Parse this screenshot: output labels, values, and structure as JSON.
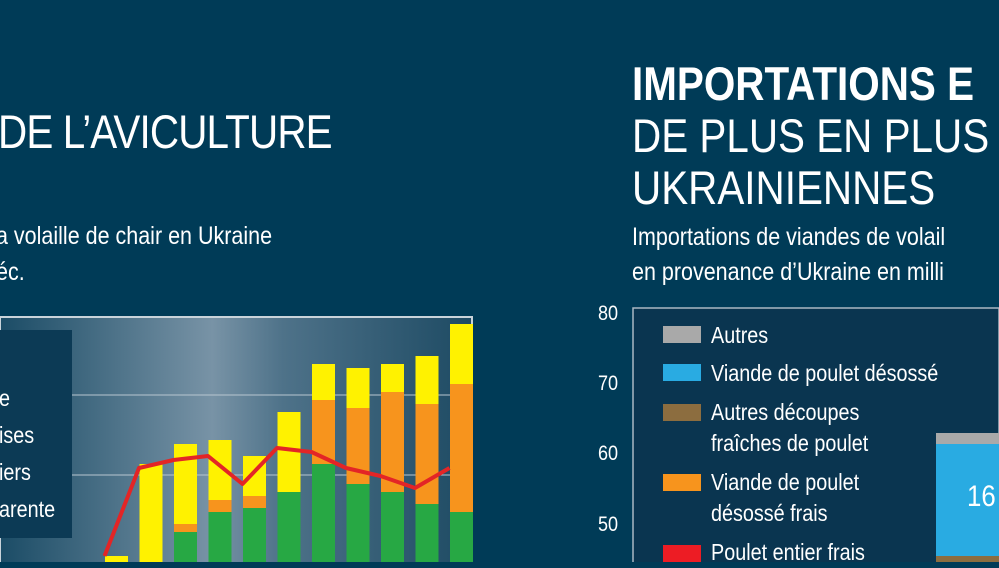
{
  "left": {
    "title": "DE L’AVICULTURE",
    "subtitle_line1": "a volaille de chair en Ukraine",
    "subtitle_line2": "éc.",
    "legend_lines": [
      "e",
      "ises",
      "iers",
      "arente"
    ]
  },
  "right": {
    "title_line1": "IMPORTATIONS E",
    "title_line2": "DE PLUS EN PLUS D",
    "title_line3": "UKRAINIENNES",
    "subtitle_line1": "Importations de viandes de volail",
    "subtitle_line2": "en provenance d’Ukraine en milli",
    "yticks": [
      "80",
      "70",
      "60",
      "50"
    ],
    "legend": [
      {
        "label": "Autres",
        "color": "#a9a9a9"
      },
      {
        "label": "Viande de poulet désossé",
        "color": "#29abe2"
      },
      {
        "label": "Autres découpes\nfraîches de poulet",
        "color": "#8c6d3f"
      },
      {
        "label": "Viande de poulet\ndésossé frais",
        "color": "#f7941d"
      },
      {
        "label": "Poulet entier frais",
        "color": "#ed1c24"
      }
    ],
    "bar_label": "16"
  },
  "chart_data": [
    {
      "type": "bar",
      "title": "",
      "stack_colors": [
        "#27a844",
        "#f7941d",
        "#fff200"
      ],
      "line_color": "#e32526",
      "bars": [
        {
          "green": 0,
          "orange": 0,
          "yellow": 2
        },
        {
          "green": 0,
          "orange": 0.5,
          "yellow": 13
        },
        {
          "green": 5,
          "orange": 1,
          "yellow": 10
        },
        {
          "green": 7.5,
          "orange": 1.5,
          "yellow": 7.5
        },
        {
          "green": 8,
          "orange": 1.5,
          "yellow": 5
        },
        {
          "green": 10,
          "orange": 0,
          "yellow": 10
        },
        {
          "green": 13.5,
          "orange": 8,
          "yellow": 4.5
        },
        {
          "green": 11,
          "orange": 9.5,
          "yellow": 5
        },
        {
          "green": 10,
          "orange": 12.5,
          "yellow": 3.5
        },
        {
          "green": 8.5,
          "orange": 12.5,
          "yellow": 6
        },
        {
          "green": 7.5,
          "orange": 16,
          "yellow": 7.5
        }
      ],
      "line": [
        2,
        13,
        14,
        14.5,
        11,
        15.5,
        15,
        13,
        12,
        10.5,
        13
      ]
    },
    {
      "type": "bar",
      "ylim": [
        45,
        80
      ],
      "yticks": [
        80,
        70,
        60,
        50
      ],
      "segments": [
        {
          "name": "Autres",
          "value": 1.2
        },
        {
          "name": "Viande de poulet désossé",
          "value": 16
        }
      ]
    }
  ]
}
